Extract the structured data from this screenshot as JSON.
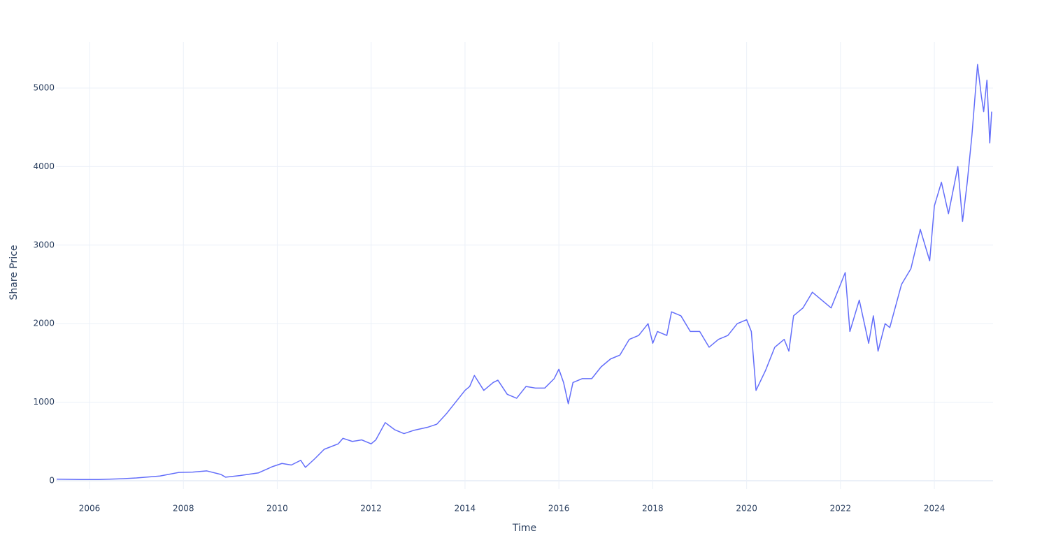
{
  "chart_data": {
    "type": "line",
    "xlabel": "Time",
    "ylabel": "Share Price",
    "xlim": [
      2005.285,
      2025.25
    ],
    "ylim": [
      -107,
      5587
    ],
    "xticks": [
      2006,
      2008,
      2010,
      2012,
      2014,
      2016,
      2018,
      2020,
      2022,
      2024
    ],
    "yticks": [
      0,
      1000,
      2000,
      3000,
      4000,
      5000
    ],
    "grid": true,
    "x": [
      2005.3,
      2005.8,
      2006.2,
      2006.7,
      2007.0,
      2007.5,
      2007.9,
      2008.2,
      2008.5,
      2008.8,
      2008.9,
      2009.2,
      2009.6,
      2009.9,
      2010.1,
      2010.3,
      2010.5,
      2010.6,
      2010.8,
      2011.0,
      2011.3,
      2011.4,
      2011.6,
      2011.8,
      2012.0,
      2012.1,
      2012.3,
      2012.5,
      2012.7,
      2012.9,
      2013.2,
      2013.4,
      2013.6,
      2013.8,
      2014.0,
      2014.1,
      2014.2,
      2014.4,
      2014.6,
      2014.7,
      2014.9,
      2015.1,
      2015.3,
      2015.5,
      2015.7,
      2015.9,
      2016.0,
      2016.1,
      2016.2,
      2016.3,
      2016.5,
      2016.7,
      2016.9,
      2017.1,
      2017.3,
      2017.5,
      2017.7,
      2017.9,
      2018.0,
      2018.1,
      2018.3,
      2018.4,
      2018.6,
      2018.8,
      2019.0,
      2019.2,
      2019.4,
      2019.6,
      2019.8,
      2020.0,
      2020.1,
      2020.2,
      2020.4,
      2020.6,
      2020.8,
      2020.9,
      2021.0,
      2021.2,
      2021.4,
      2021.6,
      2021.8,
      2022.0,
      2022.1,
      2022.2,
      2022.4,
      2022.6,
      2022.7,
      2022.8,
      2022.95,
      2023.05,
      2023.3,
      2023.5,
      2023.7,
      2023.9,
      2024.0,
      2024.15,
      2024.3,
      2024.5,
      2024.6,
      2024.7,
      2024.8,
      2024.92,
      2025.0,
      2025.05,
      2025.12,
      2025.18,
      2025.22
    ],
    "series": [
      {
        "name": "Share Price",
        "color": "#636efa",
        "values": [
          20,
          15,
          15,
          25,
          35,
          60,
          105,
          110,
          125,
          80,
          45,
          65,
          100,
          180,
          220,
          200,
          260,
          170,
          280,
          400,
          470,
          540,
          500,
          520,
          470,
          520,
          740,
          650,
          600,
          640,
          680,
          720,
          850,
          1000,
          1150,
          1200,
          1340,
          1150,
          1250,
          1280,
          1100,
          1050,
          1200,
          1180,
          1180,
          1300,
          1420,
          1250,
          980,
          1250,
          1300,
          1300,
          1450,
          1550,
          1600,
          1800,
          1850,
          2000,
          1750,
          1900,
          1850,
          2150,
          2100,
          1900,
          1900,
          1700,
          1800,
          1850,
          2000,
          2050,
          1900,
          1150,
          1400,
          1700,
          1800,
          1650,
          2100,
          2200,
          2400,
          2300,
          2200,
          2500,
          2650,
          1900,
          2300,
          1750,
          2100,
          1650,
          2000,
          1950,
          2500,
          2700,
          3200,
          2800,
          3500,
          3800,
          3400,
          4000,
          3300,
          3800,
          4400,
          5300,
          4900,
          4700,
          5100,
          4300,
          4700
        ]
      }
    ]
  }
}
